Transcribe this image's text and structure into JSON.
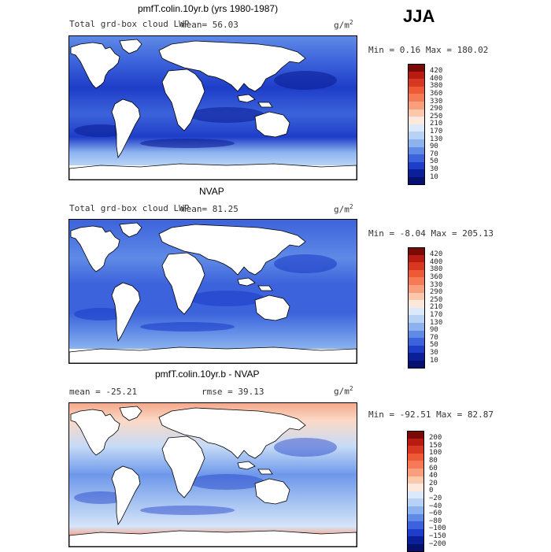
{
  "season": "JJA",
  "panels": [
    {
      "title": "pmfT.colin.10yr.b (yrs 1980-1987)",
      "subtitle": "Total grd-box cloud LWP",
      "mean": "mean=  56.03",
      "units": "g/m",
      "units_sup": "2",
      "minmax": "Min =   0.16 Max = 180.02",
      "colorbar": {
        "labels": [
          "420",
          "400",
          "380",
          "360",
          "330",
          "290",
          "250",
          "210",
          "170",
          "130",
          "90",
          "70",
          "50",
          "30",
          "10"
        ],
        "colors": [
          "#7a0a06",
          "#b71b12",
          "#d83822",
          "#ee5a38",
          "#f67a55",
          "#f99f7e",
          "#fcc8ab",
          "#fde9dc",
          "#dce9fb",
          "#b8d2f6",
          "#8cb3ef",
          "#5f8ae6",
          "#3c63db",
          "#1e3dc8",
          "#0b1f98",
          "#061070"
        ]
      },
      "fill": "rd"
    },
    {
      "title": "NVAP",
      "subtitle": "Total grd-box cloud LWP",
      "mean": "mean=  81.25",
      "units": "g/m",
      "units_sup": "2",
      "minmax": "Min =  -8.04 Max = 205.13",
      "colorbar": {
        "labels": [
          "420",
          "400",
          "380",
          "360",
          "330",
          "290",
          "250",
          "210",
          "170",
          "130",
          "90",
          "70",
          "50",
          "30",
          "10"
        ],
        "colors": [
          "#7a0a06",
          "#b71b12",
          "#d83822",
          "#ee5a38",
          "#f67a55",
          "#f99f7e",
          "#fcc8ab",
          "#fde9dc",
          "#dce9fb",
          "#b8d2f6",
          "#8cb3ef",
          "#5f8ae6",
          "#3c63db",
          "#1e3dc8",
          "#0b1f98",
          "#061070"
        ]
      },
      "fill": "nv"
    },
    {
      "title": "pmfT.colin.10yr.b - NVAP",
      "mean": "mean = -25.21",
      "rmse": "rmse =  39.13",
      "units": "g/m",
      "units_sup": "2",
      "minmax": "Min = -92.51 Max =  82.87",
      "colorbar": {
        "labels": [
          "200",
          "150",
          "100",
          "80",
          "60",
          "40",
          "20",
          "0",
          "−20",
          "−40",
          "−60",
          "−80",
          "−100",
          "−150",
          "−200"
        ],
        "colors": [
          "#7a0a06",
          "#b71b12",
          "#d83822",
          "#ee5a38",
          "#f67a55",
          "#f99f7e",
          "#fcc8ab",
          "#fde9dc",
          "#dce9fb",
          "#b8d2f6",
          "#8cb3ef",
          "#5f8ae6",
          "#3c63db",
          "#1e3dc8",
          "#0b1f98",
          "#061070"
        ]
      },
      "fill": "df"
    }
  ]
}
